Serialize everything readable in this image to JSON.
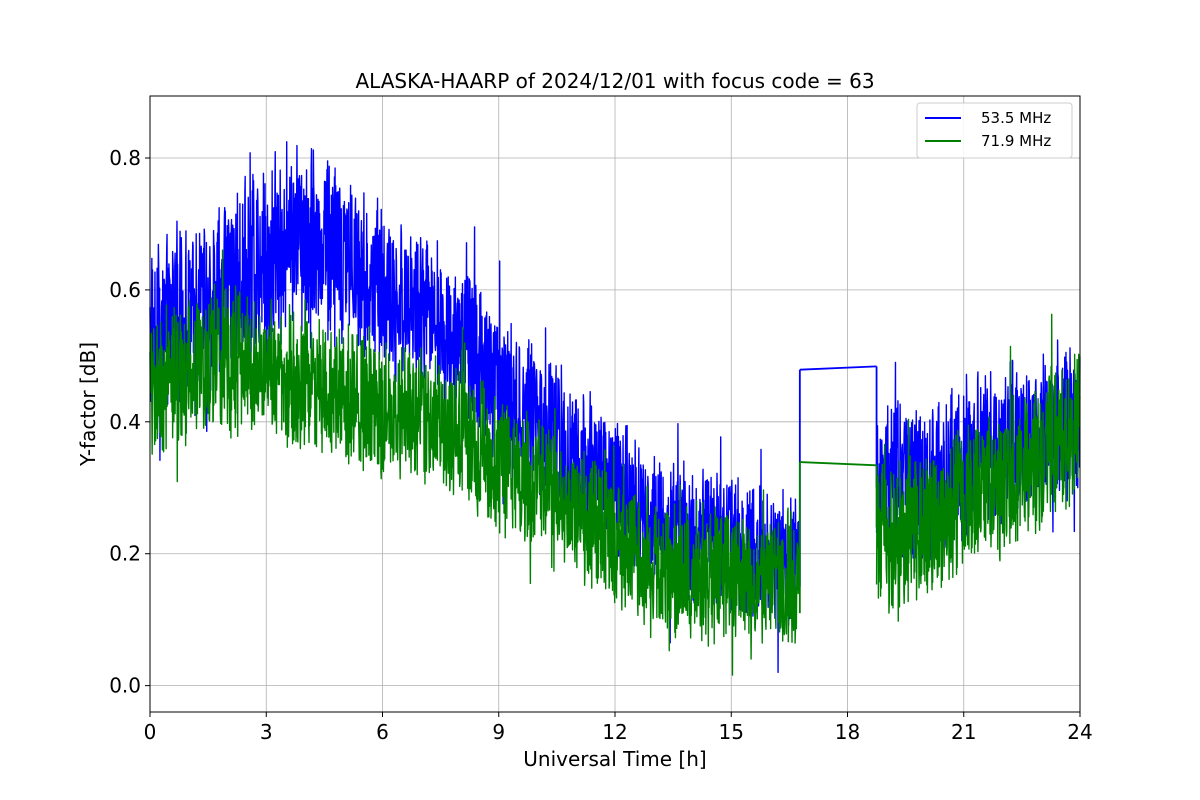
{
  "chart_data": {
    "type": "line",
    "title": "ALASKA-HAARP of 2024/12/01 with focus code = 63",
    "xlabel": "Universal Time [h]",
    "ylabel": "Y-factor [dB]",
    "xlim": [
      0,
      24
    ],
    "ylim": [
      -0.04,
      0.894
    ],
    "xticks": [
      0,
      3,
      6,
      9,
      12,
      15,
      18,
      21,
      24
    ],
    "yticks": [
      0.0,
      0.2,
      0.4,
      0.6,
      0.8
    ],
    "ytick_labels": [
      "0.0",
      "0.2",
      "0.4",
      "0.6",
      "0.8"
    ],
    "grid": true,
    "legend_position": "top-right",
    "gap": {
      "start_h": 16.77,
      "end_h": 18.75
    },
    "series": [
      {
        "name": "53.5 MHz",
        "color": "#0000ff",
        "envelope": {
          "x": [
            0,
            1,
            2,
            3,
            3.5,
            4,
            5,
            6,
            7,
            8,
            9,
            10,
            11,
            12,
            13,
            14,
            15,
            16,
            16.77,
            18.75,
            19,
            20,
            21,
            22,
            23,
            24
          ],
          "center": [
            0.54,
            0.56,
            0.6,
            0.65,
            0.68,
            0.69,
            0.65,
            0.6,
            0.57,
            0.53,
            0.45,
            0.4,
            0.35,
            0.3,
            0.25,
            0.23,
            0.22,
            0.2,
            0.2,
            0.3,
            0.3,
            0.3,
            0.34,
            0.37,
            0.38,
            0.4
          ],
          "amplitude": [
            0.12,
            0.12,
            0.12,
            0.13,
            0.13,
            0.13,
            0.12,
            0.11,
            0.1,
            0.1,
            0.1,
            0.1,
            0.1,
            0.09,
            0.09,
            0.09,
            0.09,
            0.09,
            0.09,
            0.11,
            0.11,
            0.11,
            0.11,
            0.1,
            0.1,
            0.1
          ]
        },
        "gap_line": {
          "x": [
            16.77,
            18.75
          ],
          "y": [
            0.479,
            0.484
          ]
        }
      },
      {
        "name": "71.9 MHz",
        "color": "#008000",
        "envelope": {
          "x": [
            0,
            1,
            2,
            3,
            4,
            5,
            6,
            7,
            8,
            9,
            10,
            11,
            12,
            13,
            14,
            15,
            16,
            16.77,
            18.75,
            19,
            20,
            21,
            22,
            23,
            24
          ],
          "center": [
            0.45,
            0.47,
            0.5,
            0.48,
            0.46,
            0.44,
            0.42,
            0.41,
            0.38,
            0.34,
            0.3,
            0.26,
            0.22,
            0.18,
            0.17,
            0.17,
            0.16,
            0.16,
            0.24,
            0.22,
            0.25,
            0.28,
            0.31,
            0.35,
            0.4
          ],
          "amplitude": [
            0.1,
            0.1,
            0.1,
            0.09,
            0.09,
            0.09,
            0.09,
            0.09,
            0.09,
            0.09,
            0.09,
            0.09,
            0.09,
            0.09,
            0.09,
            0.09,
            0.09,
            0.09,
            0.1,
            0.1,
            0.1,
            0.1,
            0.1,
            0.1,
            0.1
          ]
        },
        "gap_line": {
          "x": [
            16.77,
            18.75
          ],
          "y": [
            0.339,
            0.334
          ]
        }
      }
    ]
  }
}
